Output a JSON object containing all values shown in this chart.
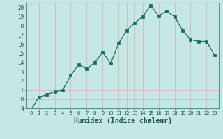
{
  "x": [
    0,
    1,
    2,
    3,
    4,
    5,
    6,
    7,
    8,
    9,
    10,
    11,
    12,
    13,
    14,
    15,
    16,
    17,
    18,
    19,
    20,
    21,
    22,
    23
  ],
  "y": [
    8.8,
    10.2,
    10.5,
    10.8,
    11.0,
    12.6,
    13.8,
    13.3,
    14.0,
    15.1,
    13.9,
    16.1,
    17.5,
    18.3,
    19.0,
    20.2,
    19.1,
    19.6,
    19.0,
    17.5,
    16.5,
    16.3,
    16.3,
    14.8
  ],
  "line_color": "#1a6b5a",
  "bg_color": "#c5e8e5",
  "grid_color": "#d4b8b8",
  "xlabel": "Humidex (Indice chaleur)",
  "xlim": [
    -0.5,
    23.5
  ],
  "ylim": [
    9,
    20.5
  ],
  "yticks": [
    9,
    10,
    11,
    12,
    13,
    14,
    15,
    16,
    17,
    18,
    19,
    20
  ],
  "xticks": [
    0,
    1,
    2,
    3,
    4,
    5,
    6,
    7,
    8,
    9,
    10,
    11,
    12,
    13,
    14,
    15,
    16,
    17,
    18,
    19,
    20,
    21,
    22,
    23
  ],
  "marker_size": 2.5,
  "linewidth": 0.9
}
